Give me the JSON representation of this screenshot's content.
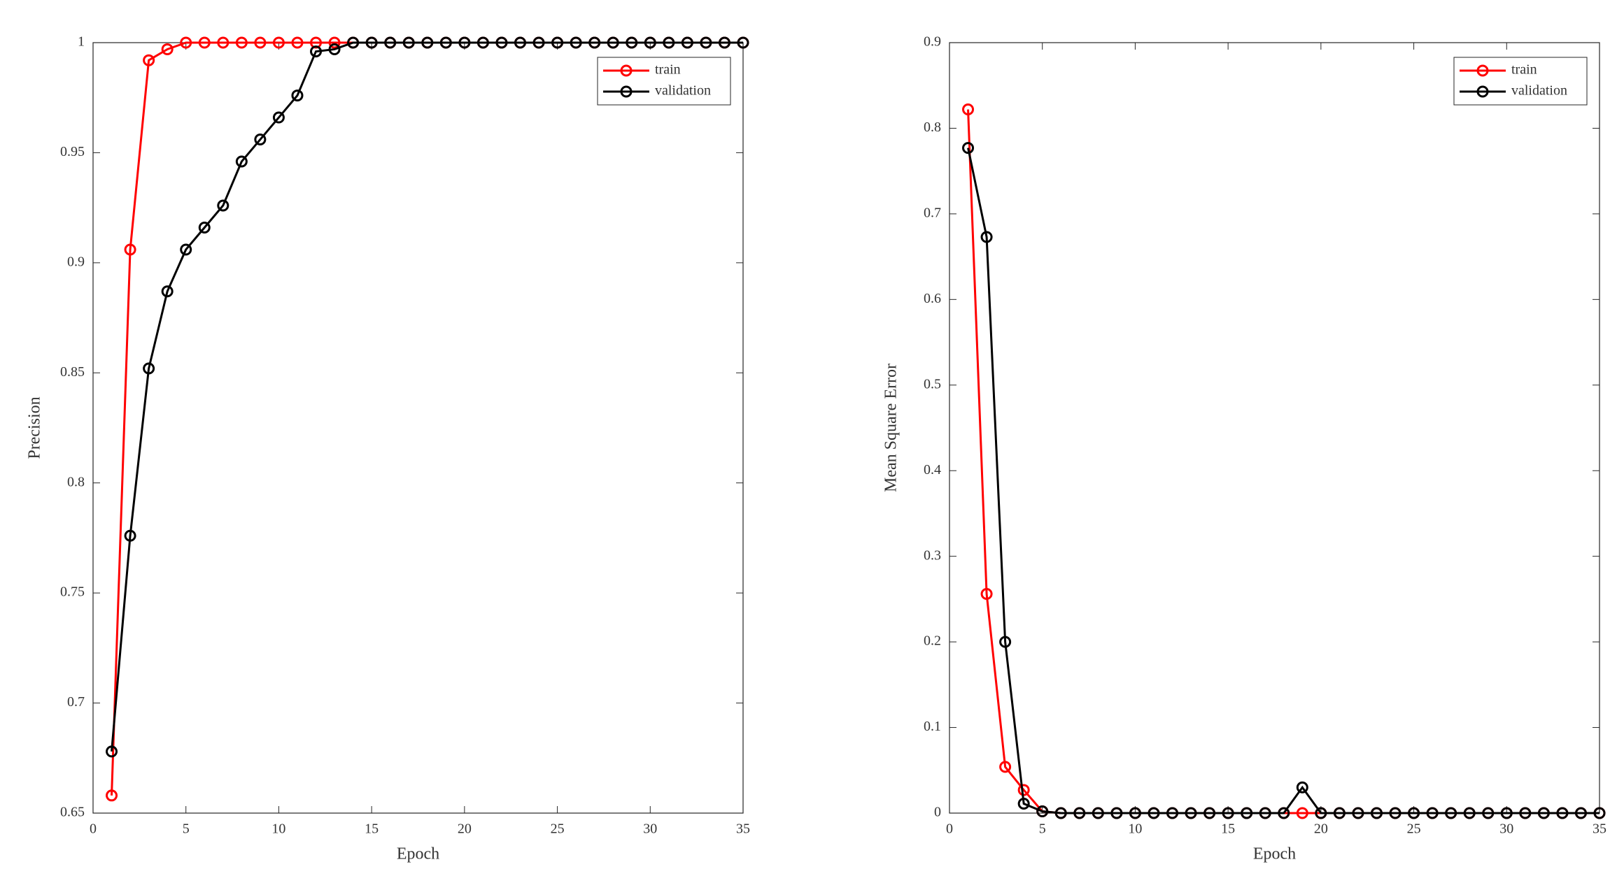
{
  "chart_data": [
    {
      "type": "line",
      "xlabel": "Epoch",
      "ylabel": "Precision",
      "x": [
        1,
        2,
        3,
        4,
        5,
        6,
        7,
        8,
        9,
        10,
        11,
        12,
        13,
        14,
        15,
        16,
        17,
        18,
        19,
        20,
        21,
        22,
        23,
        24,
        25,
        26,
        27,
        28,
        29,
        30,
        31,
        32,
        33,
        34,
        35
      ],
      "series": [
        {
          "name": "train",
          "color": "#ff0000",
          "values": [
            0.658,
            0.906,
            0.992,
            0.997,
            1,
            1,
            1,
            1,
            1,
            1,
            1,
            1,
            1,
            1,
            1,
            1,
            1,
            1,
            1,
            1,
            1,
            1,
            1,
            1,
            1,
            1,
            1,
            1,
            1,
            1,
            1,
            1,
            1,
            1,
            1
          ]
        },
        {
          "name": "validation",
          "color": "#000000",
          "values": [
            0.678,
            0.776,
            0.852,
            0.887,
            0.906,
            0.916,
            0.926,
            0.946,
            0.956,
            0.966,
            0.976,
            0.996,
            0.997,
            1,
            1,
            1,
            1,
            1,
            1,
            1,
            1,
            1,
            1,
            1,
            1,
            1,
            1,
            1,
            1,
            1,
            1,
            1,
            1,
            1,
            1
          ]
        }
      ],
      "xlim": [
        0,
        35
      ],
      "xticks": [
        0,
        5,
        10,
        15,
        20,
        25,
        30,
        35
      ],
      "ylim": [
        0.65,
        1
      ],
      "yticks": [
        0.65,
        0.7,
        0.75,
        0.8,
        0.85,
        0.9,
        0.95,
        1
      ],
      "legend": "upper-right",
      "grid": false
    },
    {
      "type": "line",
      "xlabel": "Epoch",
      "ylabel": "Mean Square Error",
      "x": [
        1,
        2,
        3,
        4,
        5,
        6,
        7,
        8,
        9,
        10,
        11,
        12,
        13,
        14,
        15,
        16,
        17,
        18,
        19,
        20,
        21,
        22,
        23,
        24,
        25,
        26,
        27,
        28,
        29,
        30,
        31,
        32,
        33,
        34,
        35
      ],
      "series": [
        {
          "name": "train",
          "color": "#ff0000",
          "values": [
            0.822,
            0.256,
            0.054,
            0.027,
            0.002,
            0,
            0,
            0,
            0,
            0,
            0,
            0,
            0,
            0,
            0,
            0,
            0,
            0,
            0,
            0,
            0,
            0,
            0,
            0,
            0,
            0,
            0,
            0,
            0,
            0,
            0,
            0,
            0,
            0,
            0
          ]
        },
        {
          "name": "validation",
          "color": "#000000",
          "values": [
            0.777,
            0.673,
            0.2,
            0.011,
            0.002,
            0,
            0,
            0,
            0,
            0,
            0,
            0,
            0,
            0,
            0,
            0,
            0,
            0,
            0.03,
            0,
            0,
            0,
            0,
            0,
            0,
            0,
            0,
            0,
            0,
            0,
            0,
            0,
            0,
            0,
            0
          ]
        }
      ],
      "xlim": [
        0,
        35
      ],
      "xticks": [
        0,
        5,
        10,
        15,
        20,
        25,
        30,
        35
      ],
      "ylim": [
        0,
        0.9
      ],
      "yticks": [
        0,
        0.1,
        0.2,
        0.3,
        0.4,
        0.5,
        0.6,
        0.7,
        0.8,
        0.9
      ],
      "legend": "upper-right",
      "grid": false
    }
  ]
}
